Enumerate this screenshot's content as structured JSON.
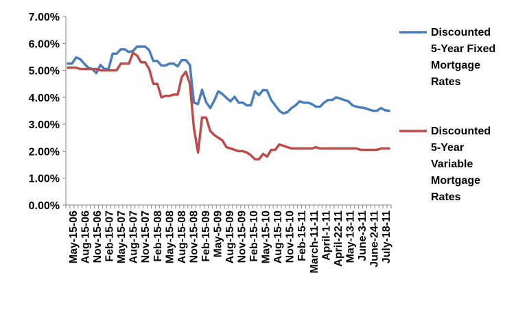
{
  "chart_data": {
    "type": "line",
    "title": "",
    "xlabel": "",
    "ylabel": "",
    "ylim": [
      0,
      0.07
    ],
    "y_ticks": [
      "0.00%",
      "1.00%",
      "2.00%",
      "3.00%",
      "4.00%",
      "5.00%",
      "6.00%",
      "7.00%"
    ],
    "grid": false,
    "legend_position": "right",
    "x_tick_labels": [
      "May-15-06",
      "Aug-15-06",
      "Nov-15-06",
      "Feb-15-07",
      "May-15-07",
      "Aug-15-07",
      "Nov-15-07",
      "Feb-15-08",
      "May-15-08",
      "Aug-15-08",
      "Nov-15-08",
      "Feb-15-09",
      "May-5-09",
      "Aug-15-09",
      "Nov-15-09",
      "Feb-15-10",
      "May-15-10",
      "Aug-15-10",
      "Nov-15-10",
      "Feb-15-11",
      "March-11-11",
      "April-1-11",
      "April-22-11",
      "May-13-11",
      "June-3-11",
      "June-24-11",
      "July-18-11"
    ],
    "series": [
      {
        "name": "Discounted 5-Year Fixed Mortgage Rates",
        "legend_lines": [
          "Discounted",
          "5-Year Fixed",
          "Mortgage",
          "Rates"
        ],
        "color": "#4a7ebb",
        "values": [
          5.25,
          5.25,
          5.48,
          5.42,
          5.25,
          5.1,
          5.05,
          4.9,
          5.2,
          5.05,
          5.05,
          5.62,
          5.62,
          5.78,
          5.78,
          5.68,
          5.72,
          5.88,
          5.88,
          5.88,
          5.75,
          5.35,
          5.35,
          5.18,
          5.18,
          5.25,
          5.25,
          5.15,
          5.38,
          5.38,
          5.2,
          3.8,
          3.75,
          4.28,
          3.82,
          3.6,
          3.88,
          4.22,
          4.12,
          3.98,
          3.85,
          4.02,
          3.8,
          3.8,
          3.7,
          3.7,
          4.22,
          4.08,
          4.27,
          4.25,
          3.9,
          3.7,
          3.5,
          3.4,
          3.45,
          3.6,
          3.7,
          3.85,
          3.8,
          3.8,
          3.75,
          3.65,
          3.65,
          3.8,
          3.9,
          3.9,
          4.0,
          3.95,
          3.9,
          3.85,
          3.7,
          3.65,
          3.62,
          3.6,
          3.55,
          3.5,
          3.5,
          3.6,
          3.52,
          3.5
        ]
      },
      {
        "name": "Discounted 5-Year Variable Mortgage Rates",
        "legend_lines": [
          "Discounted",
          "5-Year",
          "Variable",
          "Mortgage",
          "Rates"
        ],
        "color": "#be4b48",
        "values": [
          5.1,
          5.1,
          5.1,
          5.05,
          5.05,
          5.05,
          5.05,
          5.05,
          5.0,
          5.0,
          5.0,
          5.0,
          5.0,
          5.25,
          5.25,
          5.25,
          5.65,
          5.55,
          5.3,
          5.3,
          5.05,
          4.5,
          4.5,
          4.0,
          4.05,
          4.05,
          4.1,
          4.1,
          4.75,
          4.95,
          4.5,
          2.85,
          1.95,
          3.25,
          3.25,
          2.75,
          2.6,
          2.5,
          2.4,
          2.15,
          2.1,
          2.05,
          2.0,
          2.0,
          1.95,
          1.85,
          1.7,
          1.7,
          1.9,
          1.8,
          2.05,
          2.05,
          2.25,
          2.2,
          2.15,
          2.1,
          2.1,
          2.1,
          2.1,
          2.1,
          2.1,
          2.15,
          2.1,
          2.1,
          2.1,
          2.1,
          2.1,
          2.1,
          2.1,
          2.1,
          2.1,
          2.1,
          2.05,
          2.05,
          2.05,
          2.05,
          2.05,
          2.1,
          2.1,
          2.1
        ]
      }
    ]
  }
}
